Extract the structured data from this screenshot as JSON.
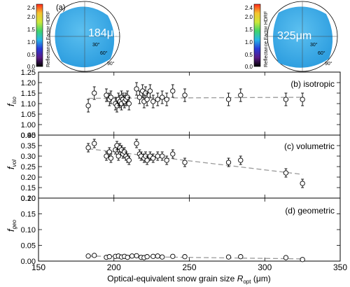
{
  "insets": [
    {
      "label": "(a)",
      "size_text": "184μm",
      "colorbar_title": "Reflectance Factor HDRF",
      "colorbar_ticks": [
        "2.4",
        "2.0",
        "1.5",
        "1.0",
        "0.5",
        "0.0"
      ],
      "angle_labels": [
        "30°",
        "60°",
        "90°"
      ]
    },
    {
      "label": "",
      "size_text": "325μm",
      "colorbar_title": "Reflectance Factor HDRF",
      "colorbar_ticks": [
        "2.4",
        "2.0",
        "1.5",
        "1.0",
        "0.5",
        "0.0"
      ],
      "angle_labels": [
        "30°",
        "60°",
        "90°"
      ]
    }
  ],
  "colors": {
    "disk": "#2f9fe0",
    "disk_light": "#5cc0f0",
    "fit_line": "#9a9a9a"
  },
  "colorbar_colors": [
    "#000000",
    "#5a1b86",
    "#2a3ad8",
    "#27b7e8",
    "#3fd46a",
    "#cde83a",
    "#f4c430",
    "#ff2a1a"
  ],
  "x_axis": {
    "label_prefix": "Optical-equivalent snow grain size",
    "symbol": "R",
    "sub": "opt",
    "unit": "(μm)",
    "range": [
      150,
      350
    ],
    "ticks": [
      150,
      200,
      250,
      300,
      350
    ]
  },
  "chart_data": [
    {
      "type": "scatter",
      "title": "(b) isotropic",
      "ylabel": "f_iso",
      "ylim": [
        0.95,
        1.25
      ],
      "yticks": [
        "0.95",
        "1.00",
        "1.05",
        "1.10",
        "1.15",
        "1.20",
        "1.25"
      ],
      "x": [
        183,
        187,
        195,
        197,
        198,
        201,
        202,
        203,
        204,
        205,
        205,
        206,
        207,
        208,
        209,
        210,
        215,
        217,
        219,
        220,
        221,
        222,
        224,
        226,
        229,
        232,
        235,
        239,
        247,
        276,
        284,
        314,
        325
      ],
      "y": [
        1.09,
        1.15,
        1.14,
        1.12,
        1.13,
        1.1,
        1.09,
        1.12,
        1.11,
        1.13,
        1.1,
        1.12,
        1.11,
        1.12,
        1.13,
        1.1,
        1.17,
        1.13,
        1.16,
        1.11,
        1.15,
        1.12,
        1.16,
        1.11,
        1.12,
        1.13,
        1.12,
        1.16,
        1.14,
        1.12,
        1.14,
        1.12,
        1.12
      ],
      "err": [
        0.03,
        0.03,
        0.03,
        0.03,
        0.03,
        0.03,
        0.03,
        0.03,
        0.03,
        0.03,
        0.03,
        0.03,
        0.03,
        0.03,
        0.03,
        0.03,
        0.03,
        0.03,
        0.03,
        0.03,
        0.03,
        0.03,
        0.03,
        0.03,
        0.03,
        0.03,
        0.03,
        0.03,
        0.03,
        0.03,
        0.03,
        0.03,
        0.03
      ],
      "fit": [
        [
          183,
          1.125
        ],
        [
          325,
          1.13
        ]
      ]
    },
    {
      "type": "scatter",
      "title": "(c) volumetric",
      "ylabel": "f_vol",
      "ylim": [
        0.1,
        0.4
      ],
      "yticks": [
        "0.10",
        "0.15",
        "0.20",
        "0.25",
        "0.30",
        "0.35",
        "0.40"
      ],
      "x": [
        183,
        187,
        195,
        197,
        198,
        201,
        202,
        203,
        204,
        205,
        206,
        207,
        208,
        209,
        210,
        215,
        217,
        218,
        220,
        221,
        222,
        224,
        226,
        229,
        232,
        235,
        239,
        247,
        276,
        284,
        314,
        325
      ],
      "y": [
        0.34,
        0.36,
        0.3,
        0.32,
        0.29,
        0.33,
        0.35,
        0.3,
        0.34,
        0.33,
        0.31,
        0.32,
        0.3,
        0.29,
        0.28,
        0.36,
        0.31,
        0.3,
        0.29,
        0.3,
        0.28,
        0.3,
        0.29,
        0.3,
        0.3,
        0.28,
        0.31,
        0.27,
        0.27,
        0.28,
        0.22,
        0.17
      ],
      "err": [
        0.02,
        0.02,
        0.02,
        0.02,
        0.02,
        0.02,
        0.02,
        0.02,
        0.02,
        0.02,
        0.02,
        0.02,
        0.02,
        0.02,
        0.02,
        0.02,
        0.02,
        0.02,
        0.02,
        0.02,
        0.02,
        0.02,
        0.02,
        0.02,
        0.02,
        0.02,
        0.02,
        0.02,
        0.02,
        0.02,
        0.02,
        0.02
      ],
      "fit": [
        [
          183,
          0.335
        ],
        [
          325,
          0.213
        ]
      ]
    },
    {
      "type": "scatter",
      "title": "(d) geometric",
      "ylabel": "f_geo",
      "ylim": [
        0.0,
        0.2
      ],
      "yticks": [
        "0.00",
        "0.05",
        "0.10",
        "0.15",
        "0.20"
      ],
      "x": [
        183,
        187,
        195,
        197,
        201,
        203,
        205,
        207,
        209,
        212,
        215,
        218,
        220,
        222,
        226,
        229,
        232,
        239,
        247,
        276,
        284,
        314,
        325
      ],
      "y": [
        0.016,
        0.018,
        0.012,
        0.014,
        0.015,
        0.016,
        0.013,
        0.015,
        0.012,
        0.016,
        0.017,
        0.012,
        0.011,
        0.014,
        0.015,
        0.016,
        0.013,
        0.015,
        0.014,
        0.013,
        0.014,
        0.011,
        0.005
      ],
      "fit": [
        [
          183,
          0.016
        ],
        [
          325,
          0.007
        ]
      ]
    }
  ]
}
